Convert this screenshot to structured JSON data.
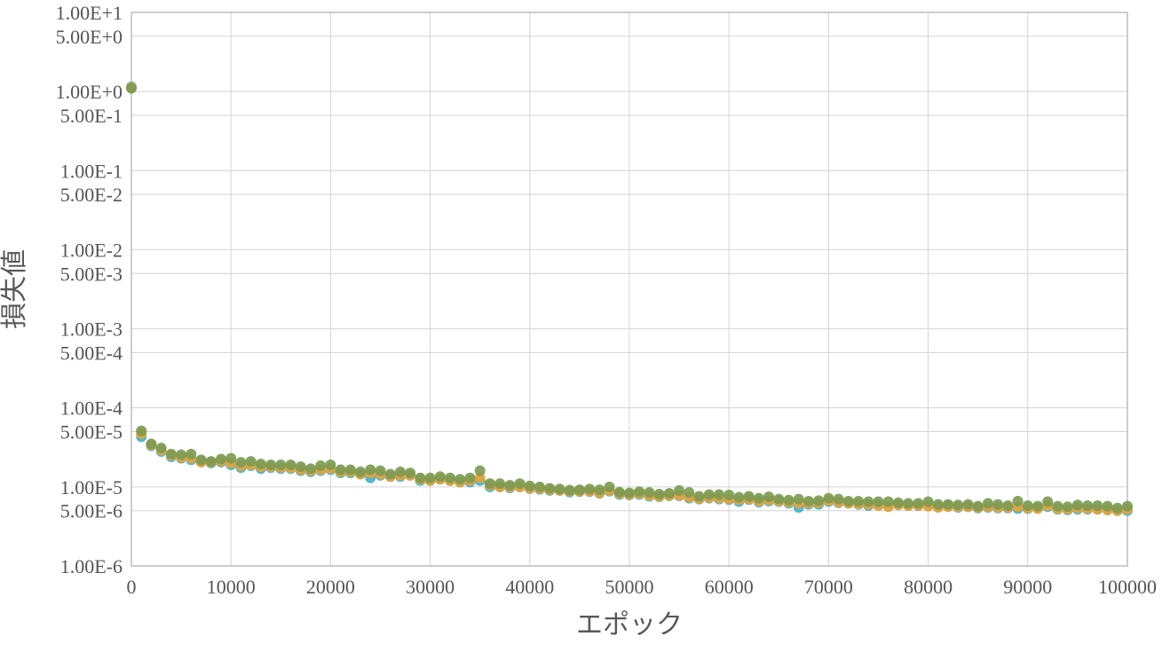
{
  "chart_data": {
    "type": "scatter",
    "title": "",
    "xlabel": "エポック",
    "ylabel": "損失値",
    "xlim": [
      0,
      100000
    ],
    "ylim": [
      1e-06,
      10
    ],
    "y_scale": "log",
    "grid": true,
    "legend": "none",
    "x_ticks": [
      {
        "value": 0,
        "label": "0"
      },
      {
        "value": 10000,
        "label": "10000"
      },
      {
        "value": 20000,
        "label": "20000"
      },
      {
        "value": 30000,
        "label": "30000"
      },
      {
        "value": 40000,
        "label": "40000"
      },
      {
        "value": 50000,
        "label": "50000"
      },
      {
        "value": 60000,
        "label": "60000"
      },
      {
        "value": 70000,
        "label": "70000"
      },
      {
        "value": 80000,
        "label": "80000"
      },
      {
        "value": 90000,
        "label": "90000"
      },
      {
        "value": 100000,
        "label": "100000"
      }
    ],
    "y_ticks": [
      {
        "value": 10,
        "label": "1.00E+1"
      },
      {
        "value": 5,
        "label": "5.00E+0"
      },
      {
        "value": 1,
        "label": "1.00E+0"
      },
      {
        "value": 0.5,
        "label": "5.00E-1"
      },
      {
        "value": 0.1,
        "label": "1.00E-1"
      },
      {
        "value": 0.05,
        "label": "5.00E-2"
      },
      {
        "value": 0.01,
        "label": "1.00E-2"
      },
      {
        "value": 0.005,
        "label": "5.00E-3"
      },
      {
        "value": 0.001,
        "label": "1.00E-3"
      },
      {
        "value": 0.0005,
        "label": "5.00E-4"
      },
      {
        "value": 0.0001,
        "label": "1.00E-4"
      },
      {
        "value": 5e-05,
        "label": "5.00E-5"
      },
      {
        "value": 1e-05,
        "label": "1.00E-5"
      },
      {
        "value": 5e-06,
        "label": "5.00E-6"
      },
      {
        "value": 1e-06,
        "label": "1.00E-6"
      }
    ],
    "x": [
      0,
      1000,
      2000,
      3000,
      4000,
      5000,
      6000,
      7000,
      8000,
      9000,
      10000,
      11000,
      12000,
      13000,
      14000,
      15000,
      16000,
      17000,
      18000,
      19000,
      20000,
      21000,
      22000,
      23000,
      24000,
      25000,
      26000,
      27000,
      28000,
      29000,
      30000,
      31000,
      32000,
      33000,
      34000,
      35000,
      36000,
      37000,
      38000,
      39000,
      40000,
      41000,
      42000,
      43000,
      44000,
      45000,
      46000,
      47000,
      48000,
      49000,
      50000,
      51000,
      52000,
      53000,
      54000,
      55000,
      56000,
      57000,
      58000,
      59000,
      60000,
      61000,
      62000,
      63000,
      64000,
      65000,
      66000,
      67000,
      68000,
      69000,
      70000,
      71000,
      72000,
      73000,
      74000,
      75000,
      76000,
      77000,
      78000,
      79000,
      80000,
      81000,
      82000,
      83000,
      84000,
      85000,
      86000,
      87000,
      88000,
      89000,
      90000,
      91000,
      92000,
      93000,
      94000,
      95000,
      96000,
      97000,
      98000,
      99000,
      100000
    ],
    "series": [
      {
        "color": "#3fb1c9",
        "values": [
          1.15,
          4.3e-05,
          3.3e-05,
          2.8e-05,
          2.4e-05,
          2.3e-05,
          2.2e-05,
          2.1e-05,
          2e-05,
          2.05e-05,
          1.9e-05,
          1.75e-05,
          1.85e-05,
          1.7e-05,
          1.75e-05,
          1.7e-05,
          1.7e-05,
          1.6e-05,
          1.55e-05,
          1.6e-05,
          1.65e-05,
          1.5e-05,
          1.5e-05,
          1.45e-05,
          1.3e-05,
          1.4e-05,
          1.35e-05,
          1.35e-05,
          1.4e-05,
          1.2e-05,
          1.2e-05,
          1.25e-05,
          1.2e-05,
          1.15e-05,
          1.15e-05,
          1.2e-05,
          1e-05,
          1e-05,
          9.7e-06,
          1e-05,
          9.5e-06,
          9.3e-06,
          9e-06,
          9e-06,
          8.6e-06,
          8.7e-06,
          8.7e-06,
          8.3e-06,
          8.8e-06,
          8e-06,
          7.9e-06,
          8e-06,
          7.6e-06,
          7.5e-06,
          7.7e-06,
          7.7e-06,
          7.2e-06,
          7e-06,
          7.2e-06,
          7e-06,
          6.9e-06,
          6.5e-06,
          6.9e-06,
          6.4e-06,
          6.6e-06,
          6.5e-06,
          6.2e-06,
          5.5e-06,
          6e-06,
          6e-06,
          6.5e-06,
          6.3e-06,
          6.2e-06,
          6e-06,
          5.8e-06,
          5.9e-06,
          5.7e-06,
          5.9e-06,
          5.8e-06,
          5.8e-06,
          5.8e-06,
          5.6e-06,
          5.7e-06,
          5.5e-06,
          5.6e-06,
          5.4e-06,
          5.5e-06,
          5.4e-06,
          5.4e-06,
          5.3e-06,
          5.3e-06,
          5.4e-06,
          5.6e-06,
          5.2e-06,
          5.1e-06,
          5.2e-06,
          5.2e-06,
          5.2e-06,
          5.1e-06,
          5e-06,
          5e-06
        ]
      },
      {
        "color": "#e8a33a",
        "values": [
          1.12,
          4.7e-05,
          3.4e-05,
          2.9e-05,
          2.5e-05,
          2.35e-05,
          2.3e-05,
          2.05e-05,
          2.05e-05,
          2.1e-05,
          2e-05,
          1.85e-05,
          1.9e-05,
          1.8e-05,
          1.8e-05,
          1.75e-05,
          1.75e-05,
          1.65e-05,
          1.6e-05,
          1.65e-05,
          1.7e-05,
          1.55e-05,
          1.55e-05,
          1.45e-05,
          1.5e-05,
          1.45e-05,
          1.35e-05,
          1.4e-05,
          1.4e-05,
          1.25e-05,
          1.2e-05,
          1.25e-05,
          1.2e-05,
          1.15e-05,
          1.2e-05,
          1.3e-05,
          1.05e-05,
          1e-05,
          1e-05,
          1e-05,
          9.6e-06,
          9.5e-06,
          9.2e-06,
          9e-06,
          8.8e-06,
          8.8e-06,
          8.8e-06,
          8.4e-06,
          9e-06,
          8.2e-06,
          8e-06,
          8.2e-06,
          7.8e-06,
          7.6e-06,
          7.8e-06,
          7.8e-06,
          7.4e-06,
          7.1e-06,
          7.3e-06,
          7.2e-06,
          7e-06,
          6.9e-06,
          7e-06,
          6.6e-06,
          6.8e-06,
          6.6e-06,
          6.4e-06,
          6.2e-06,
          6.2e-06,
          6.3e-06,
          6.7e-06,
          6.4e-06,
          6.2e-06,
          6.1e-06,
          6e-06,
          5.8e-06,
          5.6e-06,
          5.9e-06,
          5.8e-06,
          5.8e-06,
          5.7e-06,
          5.5e-06,
          5.6e-06,
          5.6e-06,
          5.6e-06,
          5.5e-06,
          5.6e-06,
          5.5e-06,
          5.5e-06,
          5.6e-06,
          5.4e-06,
          5.3e-06,
          5.8e-06,
          5.3e-06,
          5.2e-06,
          5.4e-06,
          5.3e-06,
          5.2e-06,
          5.1e-06,
          5e-06,
          5.2e-06
        ]
      },
      {
        "color": "#7a9a52",
        "values": [
          1.1,
          5.1e-05,
          3.5e-05,
          3.1e-05,
          2.6e-05,
          2.55e-05,
          2.6e-05,
          2.2e-05,
          2.1e-05,
          2.25e-05,
          2.3e-05,
          2.05e-05,
          2.1e-05,
          1.95e-05,
          1.9e-05,
          1.9e-05,
          1.9e-05,
          1.8e-05,
          1.7e-05,
          1.85e-05,
          1.9e-05,
          1.65e-05,
          1.65e-05,
          1.55e-05,
          1.65e-05,
          1.6e-05,
          1.45e-05,
          1.55e-05,
          1.5e-05,
          1.3e-05,
          1.3e-05,
          1.35e-05,
          1.3e-05,
          1.25e-05,
          1.3e-05,
          1.6e-05,
          1.1e-05,
          1.1e-05,
          1.05e-05,
          1.1e-05,
          1.03e-05,
          1e-05,
          9.6e-06,
          9.4e-06,
          9.1e-06,
          9.2e-06,
          9.4e-06,
          9.2e-06,
          1e-05,
          8.6e-06,
          8.4e-06,
          8.7e-06,
          8.5e-06,
          8.1e-06,
          8.3e-06,
          9e-06,
          8.5e-06,
          7.6e-06,
          8e-06,
          8e-06,
          7.9e-06,
          7.4e-06,
          7.6e-06,
          7.2e-06,
          7.5e-06,
          7e-06,
          6.8e-06,
          7e-06,
          6.6e-06,
          6.7e-06,
          7.2e-06,
          7e-06,
          6.6e-06,
          6.6e-06,
          6.5e-06,
          6.5e-06,
          6.5e-06,
          6.3e-06,
          6.2e-06,
          6.2e-06,
          6.5e-06,
          6e-06,
          6e-06,
          5.9e-06,
          6e-06,
          5.7e-06,
          6.2e-06,
          6e-06,
          5.8e-06,
          6.6e-06,
          5.8e-06,
          5.7e-06,
          6.5e-06,
          5.7e-06,
          5.6e-06,
          5.9e-06,
          5.8e-06,
          5.8e-06,
          5.7e-06,
          5.4e-06,
          5.7e-06
        ]
      }
    ]
  }
}
